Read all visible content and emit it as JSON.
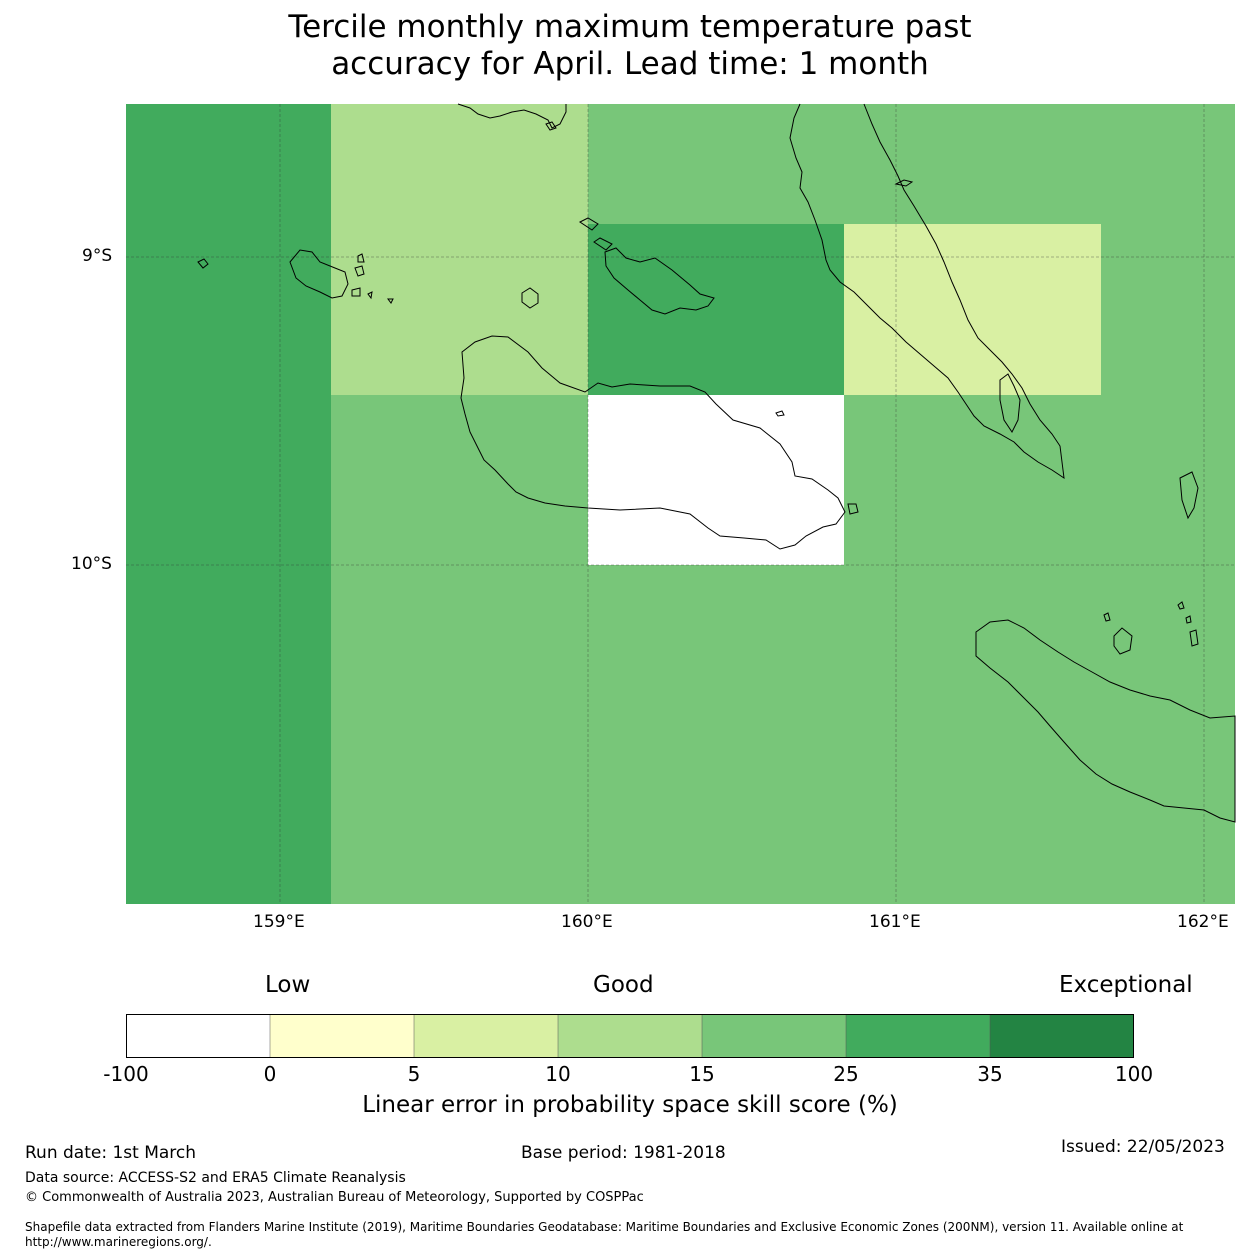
{
  "title": {
    "line1": "Tercile monthly maximum temperature past",
    "line2": "accuracy for April. Lead time: 1 month"
  },
  "map": {
    "lat_labels": [
      "9°S",
      "10°S"
    ],
    "lon_labels": [
      "159°E",
      "160°E",
      "161°E",
      "162°E"
    ],
    "grid_cells": [
      {
        "lon_range": [
          158.5,
          159.17
        ],
        "lat_range": [
          -8.5,
          -11.1
        ],
        "category": "25-35",
        "color": "#41ab5d"
      },
      {
        "lon_range": [
          159.17,
          160.0
        ],
        "lat_range": [
          -8.5,
          -9.45
        ],
        "category": "10-15",
        "color": "#addd8e"
      },
      {
        "lon_range": [
          160.0,
          162.1
        ],
        "lat_range": [
          -8.5,
          -8.89
        ],
        "category": "15-25",
        "color": "#78c679"
      },
      {
        "lon_range": [
          160.0,
          160.83
        ],
        "lat_range": [
          -8.89,
          -9.45
        ],
        "category": "25-35",
        "color": "#41ab5d"
      },
      {
        "lon_range": [
          160.83,
          161.67
        ],
        "lat_range": [
          -8.89,
          -9.45
        ],
        "category": "5-10",
        "color": "#d9f0a3"
      },
      {
        "lon_range": [
          161.67,
          162.1
        ],
        "lat_range": [
          -8.89,
          -9.45
        ],
        "category": "15-25",
        "color": "#78c679"
      },
      {
        "lon_range": [
          159.17,
          160.0
        ],
        "lat_range": [
          -9.45,
          -11.1
        ],
        "category": "15-25",
        "color": "#78c679"
      },
      {
        "lon_range": [
          160.0,
          160.83
        ],
        "lat_range": [
          -9.45,
          -10.0
        ],
        "category": "-100-0",
        "color": "#ffffff"
      },
      {
        "lon_range": [
          160.83,
          162.1
        ],
        "lat_range": [
          -9.45,
          -11.1
        ],
        "category": "15-25",
        "color": "#78c679"
      },
      {
        "lon_range": [
          160.0,
          160.83
        ],
        "lat_range": [
          -10.0,
          -11.1
        ],
        "category": "15-25",
        "color": "#78c679"
      }
    ]
  },
  "colorbar": {
    "categories": [
      "Low",
      "Good",
      "Exceptional"
    ],
    "ticks": [
      "-100",
      "0",
      "5",
      "10",
      "15",
      "25",
      "35",
      "100"
    ],
    "colors": [
      "#ffffff",
      "#ffffcc",
      "#d9f0a3",
      "#addd8e",
      "#78c679",
      "#41ab5d",
      "#238443"
    ],
    "label": "Linear error in probability space skill score (%)"
  },
  "footer": {
    "run_date": "Run date: 1st March",
    "base_period": "Base period: 1981-2018",
    "issued": "Issued: 22/05/2023",
    "data_source": "Data source: ACCESS-S2 and ERA5 Climate Reanalysis",
    "copyright": "© Commonwealth of Australia 2023, Australian Bureau of Meteorology, Supported by COSPPac",
    "shapefile_1": "Shapefile data extracted from Flanders Marine Institute (2019), Maritime Boundaries Geodatabase: Maritime Boundaries and Exclusive Economic Zones (200NM), version 11. Available online at",
    "shapefile_2": "http://www.marineregions.org/."
  }
}
